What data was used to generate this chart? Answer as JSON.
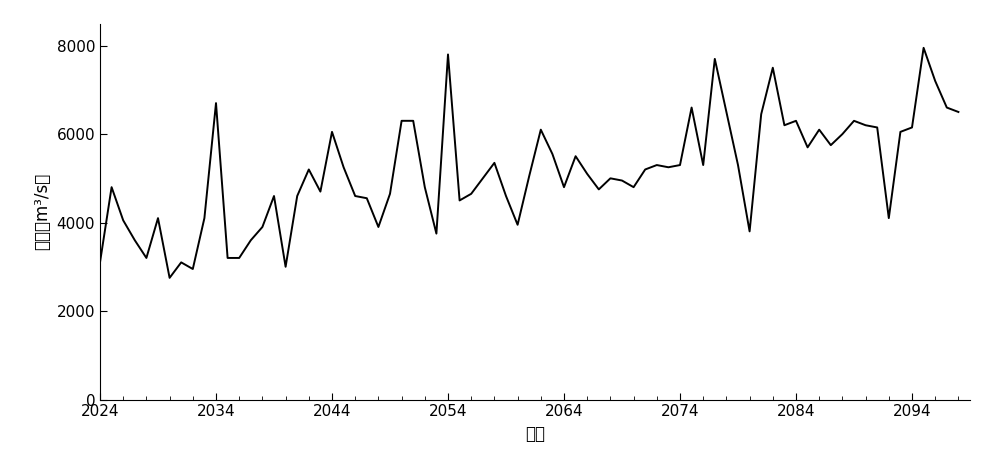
{
  "x": [
    2024,
    2025,
    2026,
    2027,
    2028,
    2029,
    2030,
    2031,
    2032,
    2033,
    2034,
    2035,
    2036,
    2037,
    2038,
    2039,
    2040,
    2041,
    2042,
    2043,
    2044,
    2045,
    2046,
    2047,
    2048,
    2049,
    2050,
    2051,
    2052,
    2053,
    2054,
    2055,
    2056,
    2057,
    2058,
    2059,
    2060,
    2061,
    2062,
    2063,
    2064,
    2065,
    2066,
    2067,
    2068,
    2069,
    2070,
    2071,
    2072,
    2073,
    2074,
    2075,
    2076,
    2077,
    2078,
    2079,
    2080,
    2081,
    2082,
    2083,
    2084,
    2085,
    2086,
    2087,
    2088,
    2089,
    2090,
    2091,
    2092,
    2093,
    2094,
    2095,
    2096,
    2097,
    2098
  ],
  "y": [
    3100,
    4800,
    4050,
    3600,
    3200,
    4100,
    2750,
    3100,
    2950,
    4100,
    6700,
    3200,
    3200,
    3600,
    3900,
    4600,
    3000,
    4600,
    5200,
    4700,
    6050,
    5250,
    4600,
    4550,
    3900,
    4650,
    6300,
    6300,
    4800,
    3750,
    7800,
    4500,
    4650,
    5000,
    5350,
    4600,
    3950,
    5050,
    6100,
    5550,
    4800,
    5500,
    5100,
    4750,
    5000,
    4950,
    4800,
    5200,
    5300,
    5250,
    5300,
    6600,
    5300,
    7700,
    6500,
    5300,
    3800,
    6450,
    7500,
    6200,
    6300,
    5700,
    6100,
    5750,
    6000,
    6300,
    6200,
    6150,
    4100,
    6050,
    6150,
    7950,
    7200,
    6600,
    6500
  ],
  "xlabel": "时间",
  "ylabel": "流量（m³/s）",
  "xlim": [
    2024,
    2099
  ],
  "ylim": [
    0,
    8500
  ],
  "yticks": [
    0,
    2000,
    4000,
    6000,
    8000
  ],
  "xticks_major": [
    2024,
    2034,
    2044,
    2054,
    2064,
    2074,
    2084,
    2094
  ],
  "xticks_minor": [
    2026,
    2028,
    2030,
    2032,
    2036,
    2038,
    2040,
    2042,
    2046,
    2048,
    2050,
    2052,
    2056,
    2058,
    2060,
    2062,
    2066,
    2068,
    2070,
    2072,
    2076,
    2078,
    2080,
    2082,
    2086,
    2088,
    2090,
    2092,
    2096,
    2098
  ],
  "line_color": "#000000",
  "line_width": 1.4,
  "background_color": "#ffffff",
  "ylabel_fontsize": 12,
  "xlabel_fontsize": 12,
  "tick_fontsize": 11
}
